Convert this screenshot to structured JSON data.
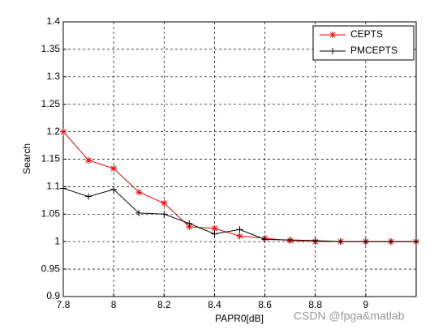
{
  "chart_data": {
    "type": "line",
    "x": [
      7.8,
      7.9,
      8.0,
      8.1,
      8.2,
      8.3,
      8.4,
      8.5,
      8.6,
      8.7,
      8.8,
      8.9,
      9.0,
      9.1,
      9.2
    ],
    "series": [
      {
        "name": "CEPTS",
        "color": "#ff0000",
        "marker": "*",
        "values": [
          1.2,
          1.148,
          1.133,
          1.09,
          1.07,
          1.027,
          1.024,
          1.01,
          1.006,
          1.002,
          1.0,
          1.0,
          1.0,
          1.0,
          1.0
        ]
      },
      {
        "name": "PMCEPTS",
        "color": "#000000",
        "marker": "+",
        "values": [
          1.097,
          1.082,
          1.095,
          1.052,
          1.05,
          1.033,
          1.014,
          1.022,
          1.004,
          1.003,
          1.002,
          1.0,
          1.0,
          1.0,
          1.0
        ]
      }
    ],
    "xlabel": "PAPR0[dB]",
    "ylabel": "Search",
    "xlim": [
      7.8,
      9.2
    ],
    "xticks": [
      7.8,
      8,
      8.2,
      8.4,
      8.6,
      8.8,
      9
    ],
    "ylim": [
      0.9,
      1.4
    ],
    "yticks": [
      0.9,
      0.95,
      1,
      1.05,
      1.1,
      1.15,
      1.2,
      1.25,
      1.3,
      1.35,
      1.4
    ],
    "grid": true,
    "legend": "northeast",
    "annotation": "CSDN @fpga&matlab"
  }
}
